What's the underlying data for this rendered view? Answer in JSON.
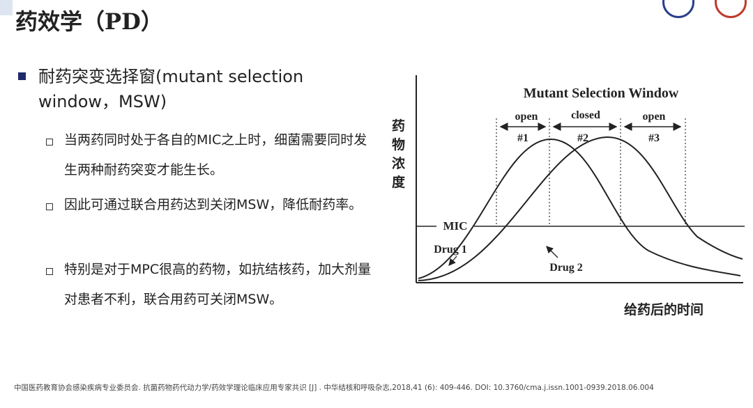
{
  "header": {
    "title": "药效学（PD）"
  },
  "bullet": {
    "text": "耐药突变选择窗(mutant selection window，MSW)",
    "items": [
      "当两药同时处于各自的MIC之上时，细菌需要同时发生两种耐药突变才能生长。",
      "因此可通过联合用药达到关闭MSW，降低耐药率。",
      "特别是对于MPC很高的药物，如抗结核药，加大剂量对患者不利，联合用药可关闭MSW。"
    ]
  },
  "figure": {
    "title": "Mutant Selection Window",
    "y_label": "药物浓度",
    "x_label": "给药后的时间",
    "mic_label": "MIC",
    "windows": [
      {
        "state": "open",
        "label": "#1"
      },
      {
        "state": "closed",
        "label": "#2"
      },
      {
        "state": "open",
        "label": "#3"
      }
    ],
    "drug1": "Drug 1",
    "drug2": "Drug 2"
  },
  "footnote": "中国医药教育协会感染疾病专业委员会. 抗菌药物药代动力学/药效学理论临床应用专家共识 [J] . 中华结核和呼吸杂志,2018,41 (6): 409-446. DOI: 10.3760/cma.j.issn.1001-0939.2018.06.004"
}
